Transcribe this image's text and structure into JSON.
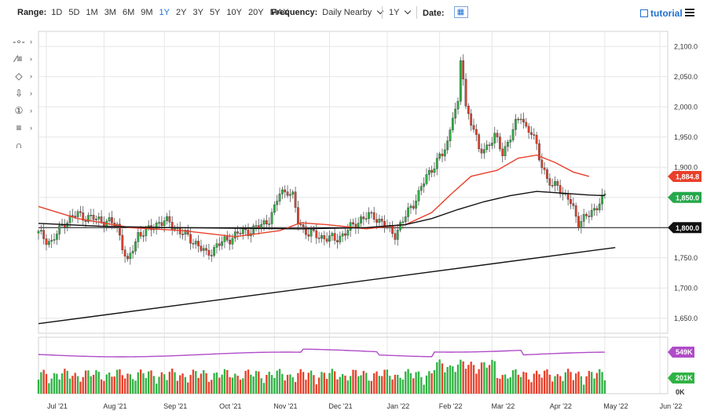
{
  "toolbar_top": {
    "range_label": "Range:",
    "ranges": [
      "1D",
      "5D",
      "1M",
      "3M",
      "6M",
      "9M",
      "1Y",
      "2Y",
      "3Y",
      "5Y",
      "10Y",
      "20Y",
      "MAX"
    ],
    "active_range": "1Y",
    "frequency_label": "Frequency:",
    "frequency_value": "Daily Nearby",
    "period_value": "1Y",
    "date_label": "Date:",
    "tutorial_label": "tutorial"
  },
  "drawing_tools": [
    {
      "icon": "crosshair-icon",
      "glyph": "-∘-"
    },
    {
      "icon": "trendline-list-icon",
      "glyph": "⁄≡"
    },
    {
      "icon": "shape-diamond-icon",
      "glyph": "◇"
    },
    {
      "icon": "arrow-down-icon",
      "glyph": "⇩"
    },
    {
      "icon": "numbered-marker-icon",
      "glyph": "①"
    },
    {
      "icon": "fibonacci-icon",
      "glyph": "≡"
    },
    {
      "icon": "magnet-icon",
      "glyph": "∩"
    }
  ],
  "chart_data": {
    "type": "candlestick",
    "ylim": [
      1625,
      2125
    ],
    "y_ticks": [
      "2,100.0",
      "2,050.0",
      "2,000.0",
      "1,950.0",
      "1,900.0",
      "1,850.0",
      "1,800.0",
      "1,750.0",
      "1,700.0",
      "1,650.0"
    ],
    "x_ticks": [
      "Jul '21",
      "Aug '21",
      "Sep '21",
      "Oct '21",
      "Nov '21",
      "Dec '21",
      "Jan '22",
      "Feb '22",
      "Mar '22",
      "Apr '22",
      "May '22",
      "Jun '22"
    ],
    "price_path": [
      [
        0,
        1790
      ],
      [
        5,
        1775
      ],
      [
        10,
        1810
      ],
      [
        15,
        1822
      ],
      [
        20,
        1815
      ],
      [
        25,
        1812
      ],
      [
        30,
        1803
      ],
      [
        34,
        1740
      ],
      [
        38,
        1790
      ],
      [
        42,
        1795
      ],
      [
        46,
        1810
      ],
      [
        50,
        1808
      ],
      [
        55,
        1790
      ],
      [
        60,
        1775
      ],
      [
        64,
        1755
      ],
      [
        68,
        1770
      ],
      [
        72,
        1780
      ],
      [
        76,
        1790
      ],
      [
        80,
        1795
      ],
      [
        84,
        1800
      ],
      [
        88,
        1815
      ],
      [
        90,
        1830
      ],
      [
        92,
        1858
      ],
      [
        95,
        1862
      ],
      [
        97,
        1850
      ],
      [
        99,
        1810
      ],
      [
        103,
        1790
      ],
      [
        108,
        1785
      ],
      [
        113,
        1780
      ],
      [
        118,
        1795
      ],
      [
        123,
        1815
      ],
      [
        128,
        1820
      ],
      [
        133,
        1800
      ],
      [
        136,
        1790
      ],
      [
        139,
        1810
      ],
      [
        142,
        1835
      ],
      [
        145,
        1855
      ],
      [
        148,
        1885
      ],
      [
        151,
        1905
      ],
      [
        154,
        1920
      ],
      [
        156,
        1940
      ],
      [
        158,
        1990
      ],
      [
        160,
        2000
      ],
      [
        161,
        2075
      ],
      [
        162,
        2050
      ],
      [
        163,
        2000
      ],
      [
        166,
        1965
      ],
      [
        168,
        1925
      ],
      [
        171,
        1935
      ],
      [
        174,
        1950
      ],
      [
        177,
        1925
      ],
      [
        180,
        1950
      ],
      [
        182,
        1970
      ],
      [
        184,
        1988
      ],
      [
        186,
        1965
      ],
      [
        188,
        1955
      ],
      [
        190,
        1935
      ],
      [
        192,
        1905
      ],
      [
        194,
        1880
      ],
      [
        196,
        1865
      ],
      [
        198,
        1875
      ],
      [
        200,
        1855
      ],
      [
        202,
        1848
      ],
      [
        204,
        1830
      ],
      [
        206,
        1810
      ],
      [
        208,
        1815
      ],
      [
        210,
        1820
      ],
      [
        212,
        1830
      ],
      [
        214,
        1845
      ],
      [
        216,
        1850
      ]
    ],
    "ma_short": [
      [
        0,
        1835
      ],
      [
        15,
        1815
      ],
      [
        35,
        1800
      ],
      [
        55,
        1795
      ],
      [
        75,
        1785
      ],
      [
        92,
        1795
      ],
      [
        100,
        1808
      ],
      [
        110,
        1805
      ],
      [
        125,
        1798
      ],
      [
        140,
        1805
      ],
      [
        150,
        1825
      ],
      [
        158,
        1858
      ],
      [
        165,
        1885
      ],
      [
        175,
        1895
      ],
      [
        183,
        1915
      ],
      [
        190,
        1920
      ],
      [
        197,
        1908
      ],
      [
        204,
        1892
      ],
      [
        210,
        1884.8
      ]
    ],
    "ma_long": [
      [
        0,
        1807
      ],
      [
        25,
        1802
      ],
      [
        50,
        1800
      ],
      [
        75,
        1799
      ],
      [
        100,
        1798
      ],
      [
        125,
        1800
      ],
      [
        140,
        1805
      ],
      [
        150,
        1815
      ],
      [
        160,
        1830
      ],
      [
        170,
        1843
      ],
      [
        180,
        1853
      ],
      [
        190,
        1860
      ],
      [
        200,
        1857
      ],
      [
        210,
        1854
      ],
      [
        216,
        1853
      ]
    ],
    "horizontal_level": 1800,
    "trendline": [
      [
        0,
        1641
      ],
      [
        220,
        1767
      ]
    ],
    "price_badges": [
      {
        "label": "1,884.8",
        "color": "#e8402a"
      },
      {
        "label": "1,850.0",
        "color": "#26a84b"
      },
      {
        "label": "1,800.0",
        "color": "#111111"
      }
    ],
    "volume_axis": {
      "ticks": [
        "549K",
        "201K",
        "0K"
      ],
      "oscillator_color": "#b04cc8",
      "vol_up_color": "#2fb344",
      "vol_down_color": "#e8402a"
    },
    "colors": {
      "up": "#2fb344",
      "down": "#e8402a",
      "ma_short": "#e8402a",
      "ma_long": "#111111",
      "grid": "#e6e6e6"
    }
  }
}
